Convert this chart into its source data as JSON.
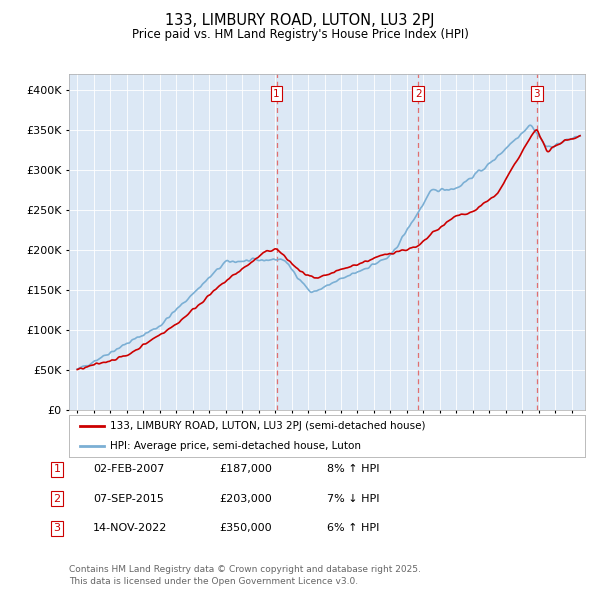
{
  "title": "133, LIMBURY ROAD, LUTON, LU3 2PJ",
  "subtitle": "Price paid vs. HM Land Registry's House Price Index (HPI)",
  "legend_label_red": "133, LIMBURY ROAD, LUTON, LU3 2PJ (semi-detached house)",
  "legend_label_blue": "HPI: Average price, semi-detached house, Luton",
  "footer1": "Contains HM Land Registry data © Crown copyright and database right 2025.",
  "footer2": "This data is licensed under the Open Government Licence v3.0.",
  "transactions": [
    {
      "num": "1",
      "date": "02-FEB-2007",
      "price": "£187,000",
      "pct": "8%",
      "dir": "↑",
      "xval": 2007.09
    },
    {
      "num": "2",
      "date": "07-SEP-2015",
      "price": "£203,000",
      "pct": "7%",
      "dir": "↓",
      "xval": 2015.68
    },
    {
      "num": "3",
      "date": "14-NOV-2022",
      "price": "£350,000",
      "pct": "6%",
      "dir": "↑",
      "xval": 2022.87
    }
  ],
  "vline_color": "#e07070",
  "red_color": "#cc0000",
  "blue_color": "#7bafd4",
  "ylim": [
    0,
    420000
  ],
  "yticks": [
    0,
    50000,
    100000,
    150000,
    200000,
    250000,
    300000,
    350000,
    400000
  ],
  "xlim_start": 1994.5,
  "xlim_end": 2025.8,
  "background_color": "#ffffff",
  "plot_bg": "#dce8f5",
  "grid_color": "#ffffff"
}
